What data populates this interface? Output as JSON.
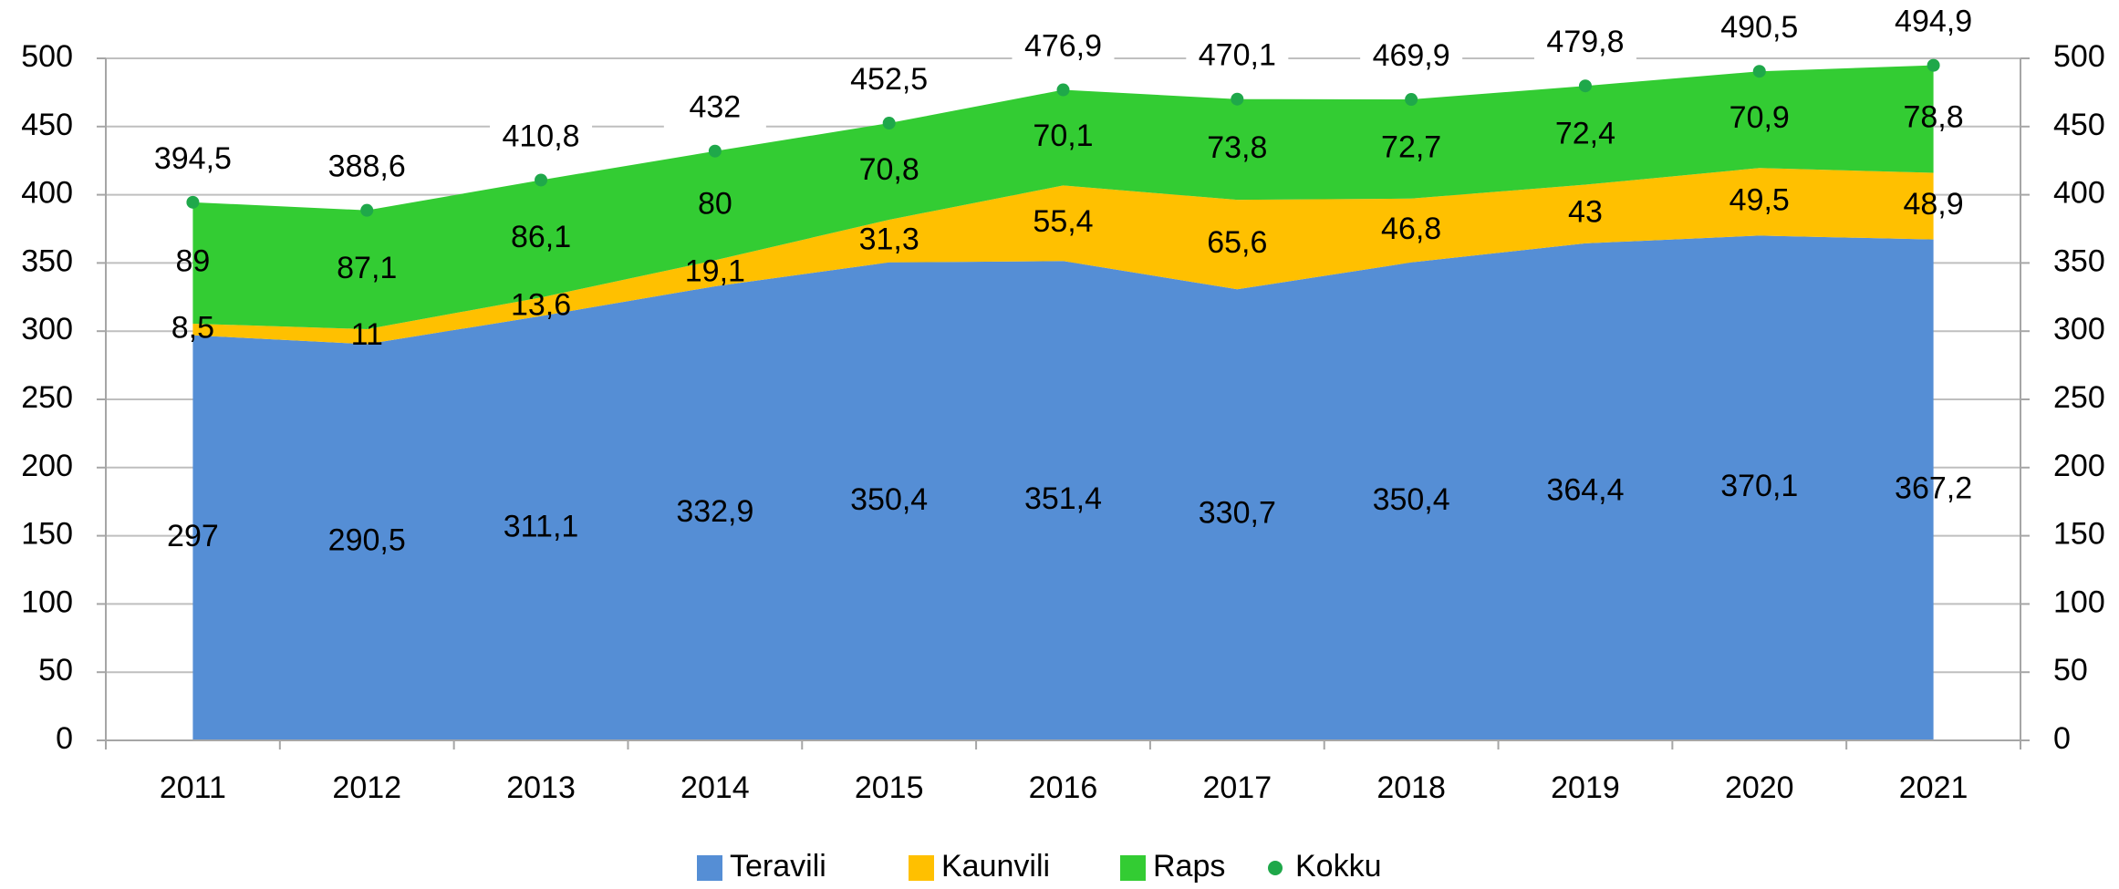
{
  "chart_data": {
    "type": "stacked_area",
    "categories": [
      "2011",
      "2012",
      "2013",
      "2014",
      "2015",
      "2016",
      "2017",
      "2018",
      "2019",
      "2020",
      "2021"
    ],
    "series": [
      {
        "name": "Teravili",
        "color": "#558ed5",
        "values": [
          297,
          290.5,
          311.1,
          332.9,
          350.4,
          351.4,
          330.7,
          350.4,
          364.4,
          370.1,
          367.2
        ],
        "value_labels": [
          "297",
          "290,5",
          "311,1",
          "332,9",
          "350,4",
          "351,4",
          "330,7",
          "350,4",
          "364,4",
          "370,1",
          "367,2"
        ]
      },
      {
        "name": "Kaunvili",
        "color": "#ffc000",
        "values": [
          8.5,
          11,
          13.6,
          19.1,
          31.3,
          55.4,
          65.6,
          46.8,
          43,
          49.5,
          48.9
        ],
        "value_labels": [
          "8,5",
          "11",
          "13,6",
          "19,1",
          "31,3",
          "55,4",
          "65,6",
          "46,8",
          "43",
          "49,5",
          "48,9"
        ]
      },
      {
        "name": "Raps",
        "color": "#33cc33",
        "values": [
          89,
          87.1,
          86.1,
          80,
          70.8,
          70.1,
          73.8,
          72.7,
          72.4,
          70.9,
          78.8
        ],
        "value_labels": [
          "89",
          "87,1",
          "86,1",
          "80",
          "70,8",
          "70,1",
          "73,8",
          "72,7",
          "72,4",
          "70,9",
          "78,8"
        ]
      },
      {
        "name": "Kokku",
        "color": "#1fa84a",
        "type": "scatter",
        "values": [
          394.5,
          388.6,
          410.8,
          432,
          452.5,
          476.9,
          470.1,
          469.9,
          479.8,
          490.5,
          494.9
        ],
        "value_labels": [
          "394,5",
          "388,6",
          "410,8",
          "432",
          "452,5",
          "476,9",
          "470,1",
          "469,9",
          "479,8",
          "490,5",
          "494,9"
        ]
      }
    ],
    "ylim": [
      0,
      500
    ],
    "yticks": [
      0,
      50,
      100,
      150,
      200,
      250,
      300,
      350,
      400,
      450,
      500
    ],
    "y2lim": [
      0,
      500
    ],
    "y2ticks": [
      0,
      50,
      100,
      150,
      200,
      250,
      300,
      350,
      400,
      450,
      500
    ],
    "grid": true,
    "legend": "bottom"
  }
}
